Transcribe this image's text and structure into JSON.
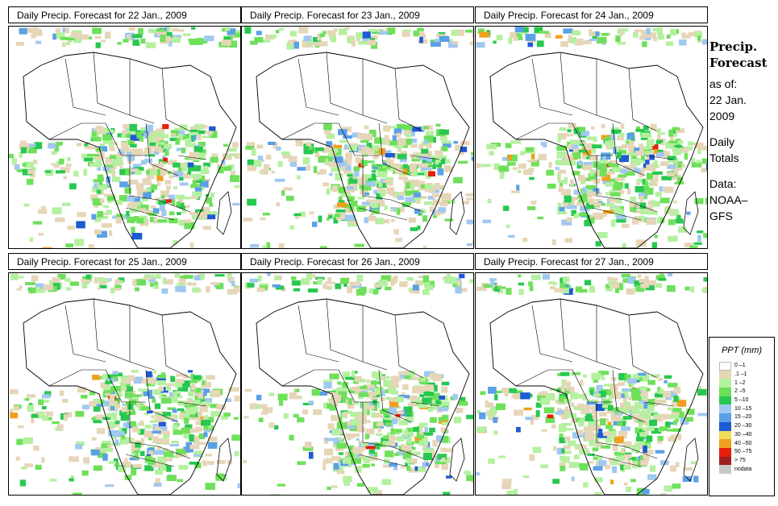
{
  "panels": [
    {
      "title": "Daily Precip. Forecast for  22 Jan., 2009"
    },
    {
      "title": "Daily Precip. Forecast for  23 Jan., 2009"
    },
    {
      "title": "Daily Precip. Forecast for  24 Jan., 2009"
    },
    {
      "title": "Daily Precip. Forecast for  25 Jan., 2009"
    },
    {
      "title": "Daily Precip. Forecast for  26 Jan., 2009"
    },
    {
      "title": "Daily Precip. Forecast for  27 Jan., 2009"
    }
  ],
  "side": {
    "heading_line1": "Precip.",
    "heading_line2": "Forecast",
    "asof_line1": "as of:",
    "asof_line2": "22 Jan.",
    "asof_line3": "2009",
    "totals_line1": "Daily",
    "totals_line2": "Totals",
    "data_line1": "Data:",
    "data_line2": "NOAA–",
    "data_line3": "GFS"
  },
  "legend": {
    "title": "PPT (mm)",
    "items": [
      {
        "label": "0 –1",
        "color": "#ffffff"
      },
      {
        "label": ".1 –1",
        "color": "#e6d6b8"
      },
      {
        "label": "1 –2",
        "color": "#b4f0a0"
      },
      {
        "label": "2 –5",
        "color": "#6ee05a"
      },
      {
        "label": "5 –10",
        "color": "#28c850"
      },
      {
        "label": "10 –15",
        "color": "#a0c8f0"
      },
      {
        "label": "15 –20",
        "color": "#5aa0e6"
      },
      {
        "label": "20 –30",
        "color": "#1e5ad2"
      },
      {
        "label": "30 –40",
        "color": "#f0dc5a"
      },
      {
        "label": "40 –50",
        "color": "#f0a01e"
      },
      {
        "label": "50 –75",
        "color": "#e61e0a"
      },
      {
        "label": "> 75",
        "color": "#a01e1e"
      },
      {
        "label": "nodata",
        "color": "#c8c8c8"
      }
    ]
  }
}
